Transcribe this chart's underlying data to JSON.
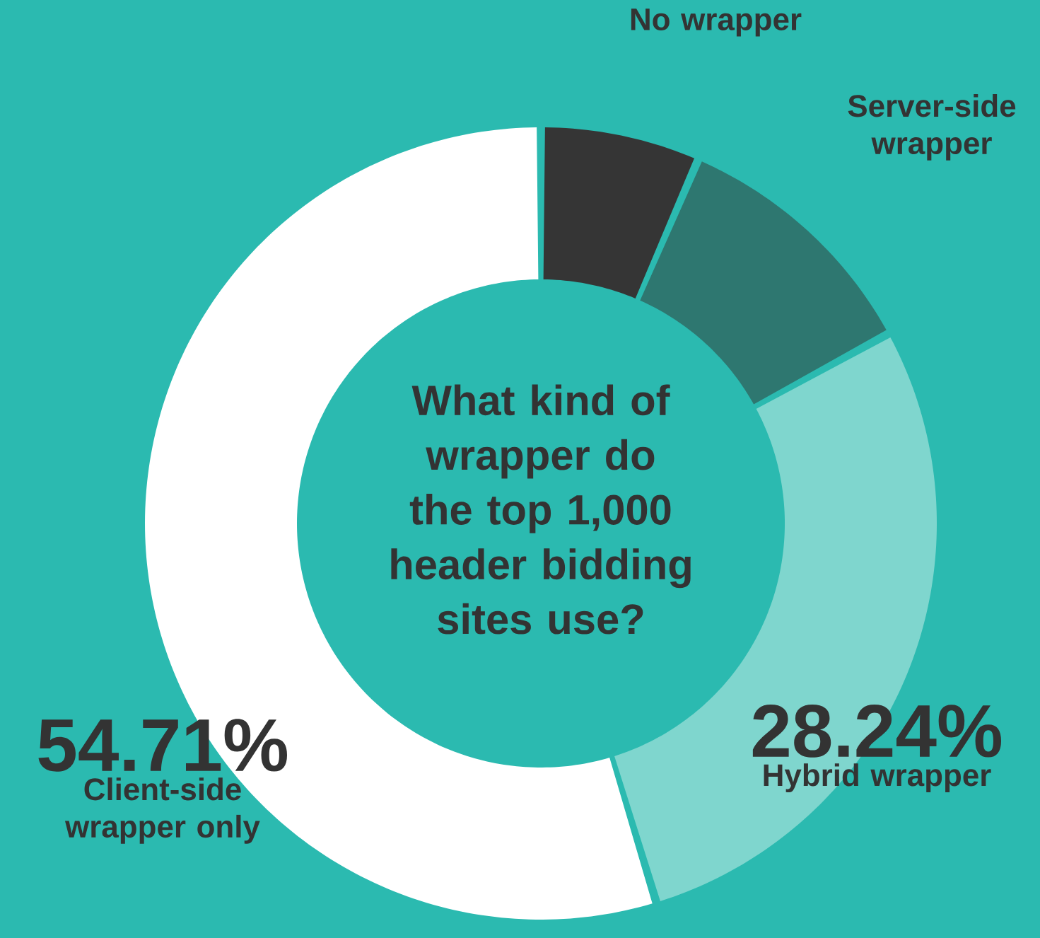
{
  "chart_data": {
    "type": "donut",
    "title": "What kind of wrapper do the top 1,000 header bidding sites use?",
    "categories": [
      "No wrapper",
      "Server-side wrapper",
      "Hybrid wrapper",
      "Client-side wrapper only"
    ],
    "values": [
      6.5,
      10.55,
      28.24,
      54.71
    ],
    "colors": [
      "#353535",
      "#2e7770",
      "#7fd6ce",
      "#ffffff"
    ],
    "value_labels": [
      null,
      null,
      "28.24%",
      "54.71%"
    ],
    "legend": false
  }
}
